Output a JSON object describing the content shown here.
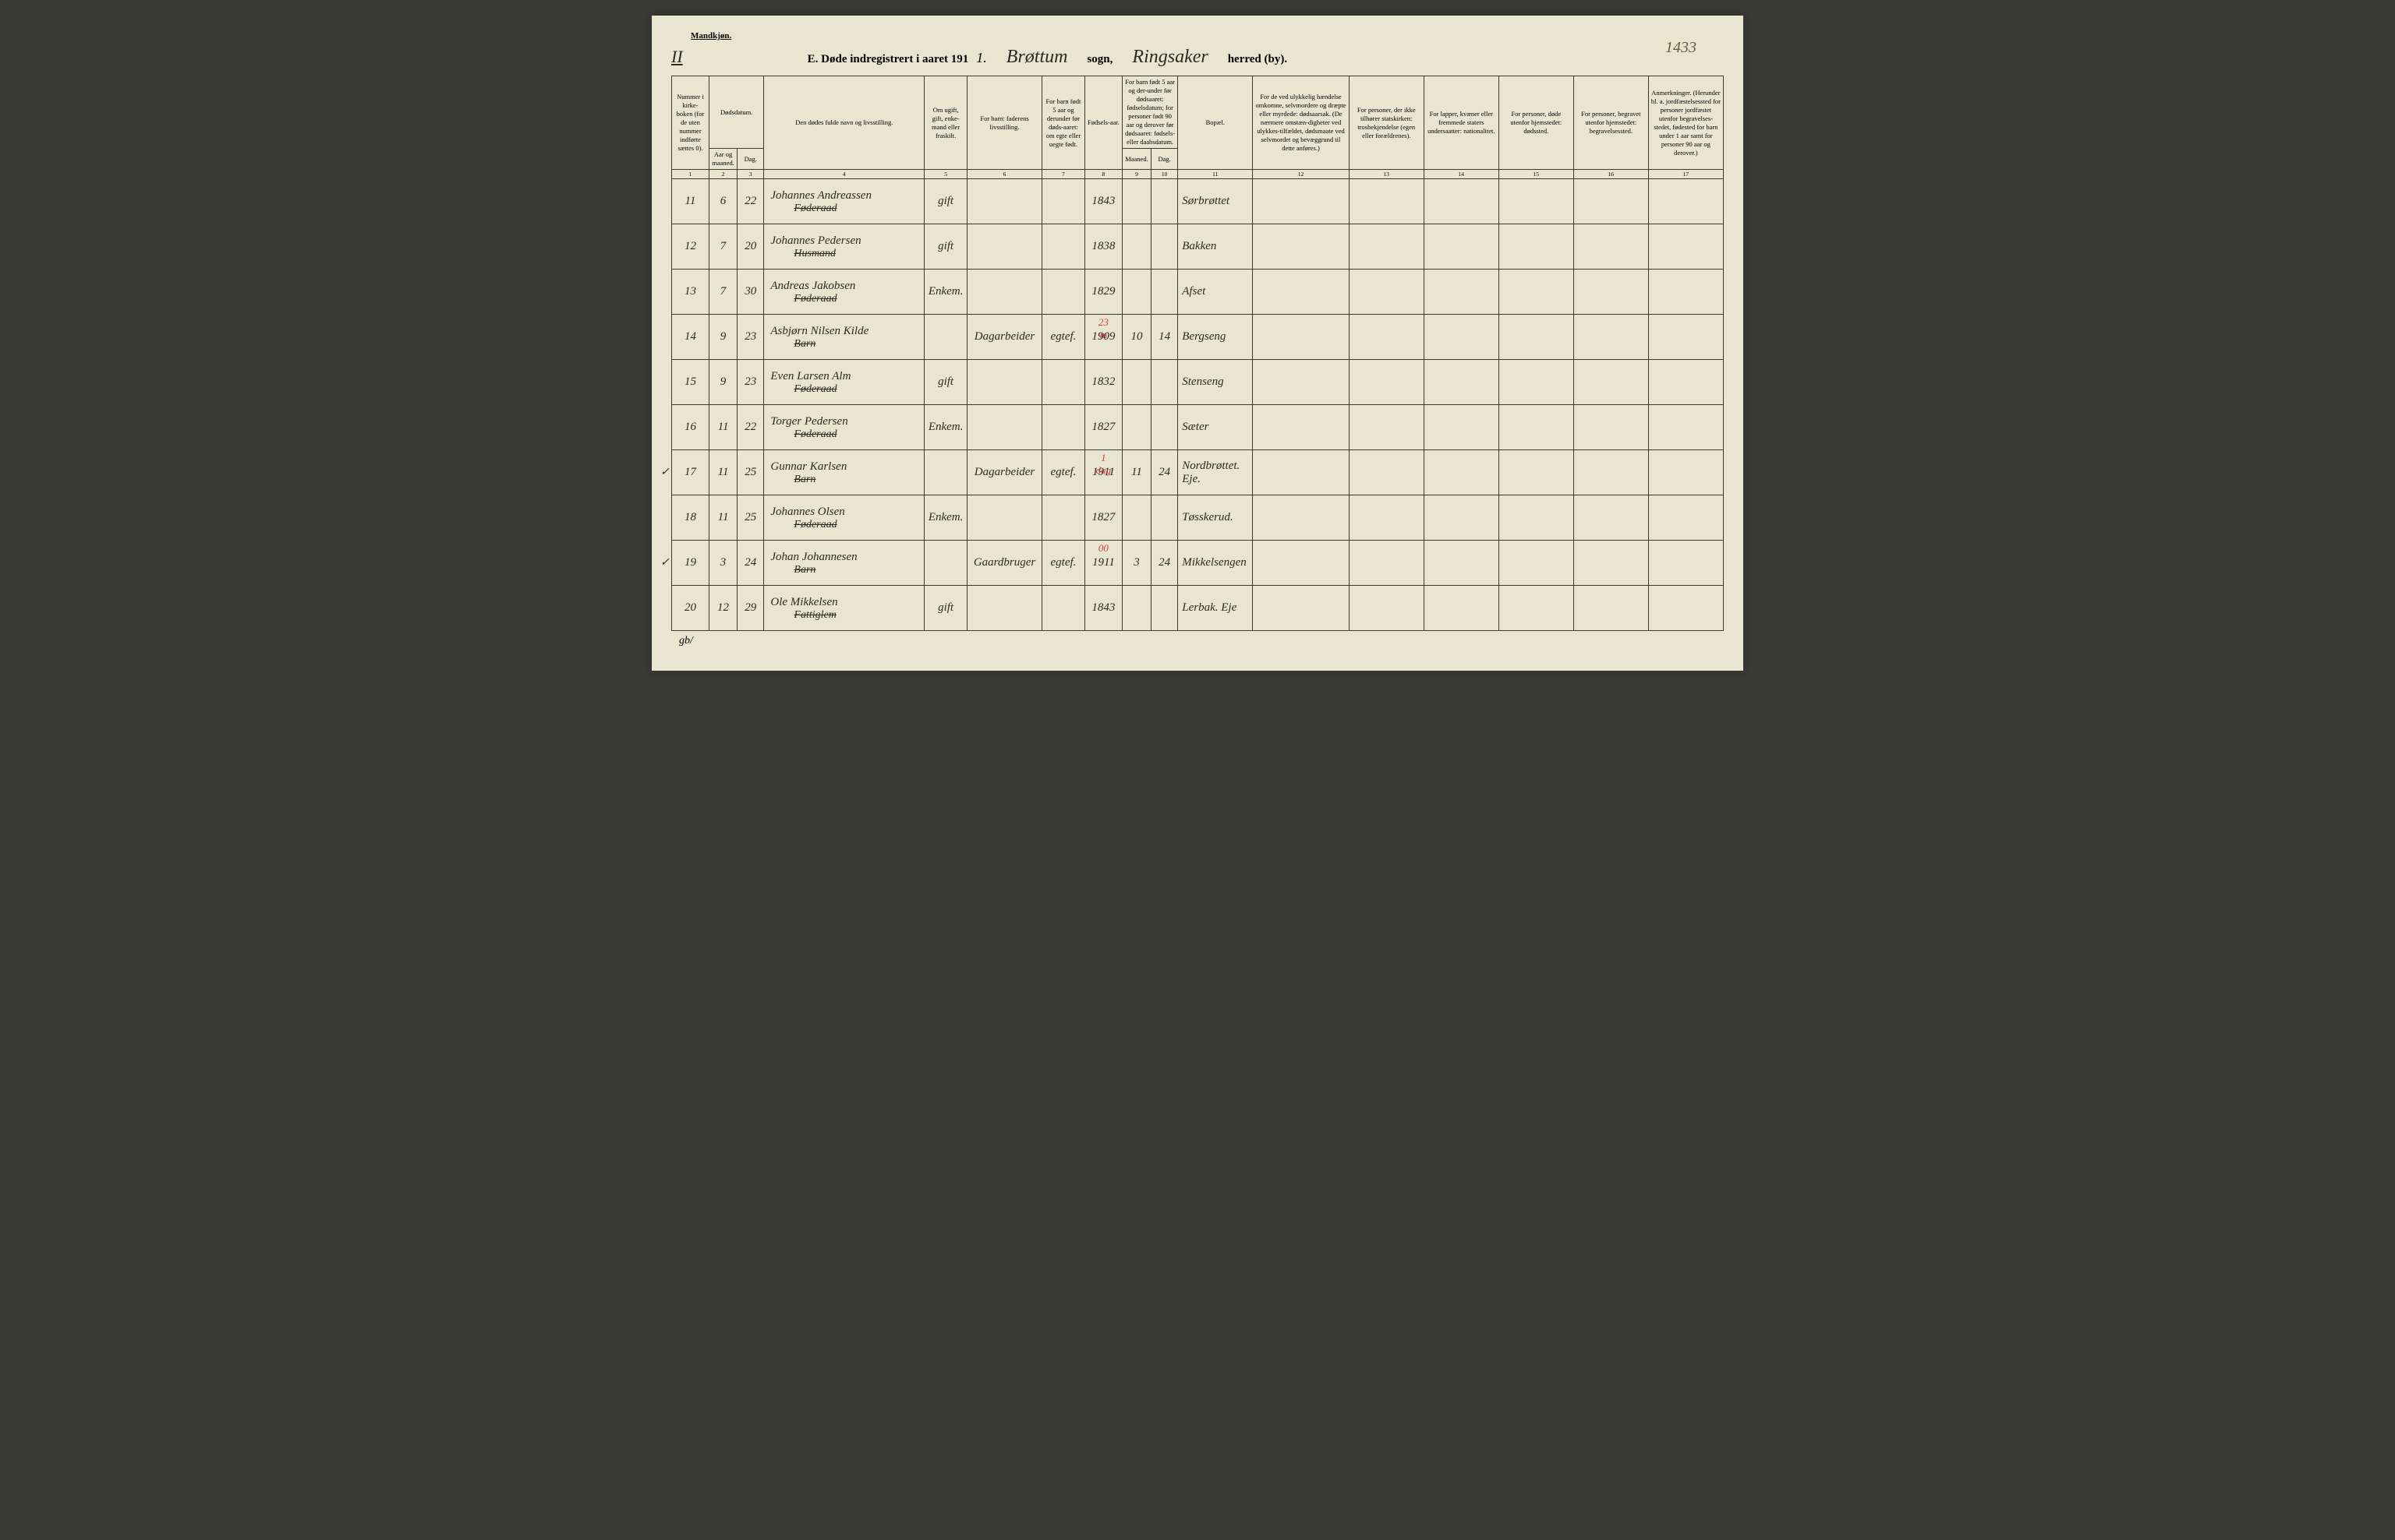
{
  "colors": {
    "page_bg": "#e8e6d0",
    "outer_bg": "#3a3a35",
    "text": "#2a2a20",
    "border": "#3a3a30",
    "red": "#d04040",
    "corner": "#6a5a40"
  },
  "header": {
    "mandkjonn": "Mandkjøn.",
    "roman": "II",
    "title_prefix": "E.  Døde indregistrert i aaret 191",
    "year_digit": "1.",
    "sogn_handwritten": "Brøttum",
    "sogn_label": "sogn,",
    "herred_handwritten": "Ringsaker",
    "herred_label": "herred (by).",
    "corner_number": "1433"
  },
  "columns": {
    "c1": "Nummer i kirke-boken (for de uten nummer indførte sættes 0).",
    "c2_group": "Dødsdatum.",
    "c2a": "Aar og maaned.",
    "c2b": "Dag.",
    "c4": "Den dødes fulde navn og livsstilling.",
    "c5": "Om ugift, gift, enke-mand eller fraskilt.",
    "c6": "For barn: faderens livsstilling.",
    "c7": "For barn født 5 aar og derunder før døds-aaret: om egte eller uegte født.",
    "c8": "Fødsels-aar.",
    "c9_group": "For barn født 5 aar og der-under før dødsaaret: fødselsdatum; for personer født 90 aar og derover før dødsaaret: fødsels- eller daabsdatum.",
    "c9a": "Maaned.",
    "c9b": "Dag.",
    "c11": "Bopæl.",
    "c12": "For de ved ulykkelig hændelse omkomne, selvmordere og dræpte eller myrdede: dødsaarsak. (De nærmere omstæn-digheter ved ulykkes-tilfældet, dødsmaate ved selvmordet og bevæggrund til dette anføres.)",
    "c13": "For personer, der ikke tilhører statskirken: trosbekjendelse (egen eller forældrenes).",
    "c14": "For lapper, kvæner eller fremmede staters undersaatter: nationalitet.",
    "c15": "For personer, døde utenfor hjemstedet: dødssted.",
    "c16": "For personer, begravet utenfor hjemstedet: begravelsessted.",
    "c17": "Anmerkninger. (Herunder bl. a. jordfæstelsessted for personer jordfæstet utenfor begravelses-stedet, fødested for barn under 1 aar samt for personer 90 aar og derover.)"
  },
  "col_numbers": [
    "1",
    "2",
    "3",
    "4",
    "5",
    "6",
    "7",
    "8",
    "9",
    "10",
    "11",
    "12",
    "13",
    "14",
    "15",
    "16",
    "17"
  ],
  "rows": [
    {
      "num": "11",
      "aar": "6",
      "dag": "22",
      "name": "Johannes Andreassen",
      "sub": "Føderaad",
      "status": "gift",
      "barn": "",
      "egte": "",
      "fodselsaar": "1843",
      "maaned": "",
      "dag2": "",
      "bopael": "Sørbrøttet",
      "check": ""
    },
    {
      "num": "12",
      "aar": "7",
      "dag": "20",
      "name": "Johannes Pedersen",
      "sub": "Husmand",
      "status": "gift",
      "barn": "",
      "egte": "",
      "fodselsaar": "1838",
      "maaned": "",
      "dag2": "",
      "bopael": "Bakken",
      "check": ""
    },
    {
      "num": "13",
      "aar": "7",
      "dag": "30",
      "name": "Andreas Jakobsen",
      "sub": "Føderaad",
      "status": "Enkem.",
      "barn": "",
      "egte": "",
      "fodselsaar": "1829",
      "maaned": "",
      "dag2": "",
      "bopael": "Afset",
      "check": ""
    },
    {
      "num": "14",
      "aar": "9",
      "dag": "23",
      "name": "Asbjørn Nilsen Kilde",
      "sub": "Barn",
      "status": "",
      "barn": "Dagarbeider",
      "egte": "egtef.",
      "fodselsaar": "1909",
      "red": "23 m",
      "maaned": "10",
      "dag2": "14",
      "bopael": "Bergseng",
      "check": ""
    },
    {
      "num": "15",
      "aar": "9",
      "dag": "23",
      "name": "Even Larsen Alm",
      "sub": "Føderaad",
      "status": "gift",
      "barn": "",
      "egte": "",
      "fodselsaar": "1832",
      "maaned": "",
      "dag2": "",
      "bopael": "Stenseng",
      "check": ""
    },
    {
      "num": "16",
      "aar": "11",
      "dag": "22",
      "name": "Torger Pedersen",
      "sub": "Føderaad",
      "status": "Enkem.",
      "barn": "",
      "egte": "",
      "fodselsaar": "1827",
      "maaned": "",
      "dag2": "",
      "bopael": "Sæter",
      "check": ""
    },
    {
      "num": "17",
      "aar": "11",
      "dag": "25",
      "name": "Gunnar Karlsen",
      "sub": "Barn",
      "status": "",
      "barn": "Dagarbeider",
      "egte": "egtef.",
      "fodselsaar": "1911",
      "red": "1 dag",
      "maaned": "11",
      "dag2": "24",
      "bopael": "Nordbrøttet. Eje.",
      "check": "✓"
    },
    {
      "num": "18",
      "aar": "11",
      "dag": "25",
      "name": "Johannes Olsen",
      "sub": "Føderaad",
      "status": "Enkem.",
      "barn": "",
      "egte": "",
      "fodselsaar": "1827",
      "maaned": "",
      "dag2": "",
      "bopael": "Tøsskerud.",
      "check": ""
    },
    {
      "num": "19",
      "aar": "3",
      "dag": "24",
      "name": "Johan Johannesen",
      "sub": "Barn",
      "status": "",
      "barn": "Gaardbruger",
      "egte": "egtef.",
      "fodselsaar": "1911",
      "red": "00",
      "maaned": "3",
      "dag2": "24",
      "bopael": "Mikkelsengen",
      "check": "✓"
    },
    {
      "num": "20",
      "aar": "12",
      "dag": "29",
      "name": "Ole Mikkelsen",
      "sub": "Fattiglem",
      "status": "gift",
      "barn": "",
      "egte": "",
      "fodselsaar": "1843",
      "maaned": "",
      "dag2": "",
      "bopael": "Lerbak. Eje",
      "check": ""
    }
  ],
  "bottom_mark": "gb/"
}
